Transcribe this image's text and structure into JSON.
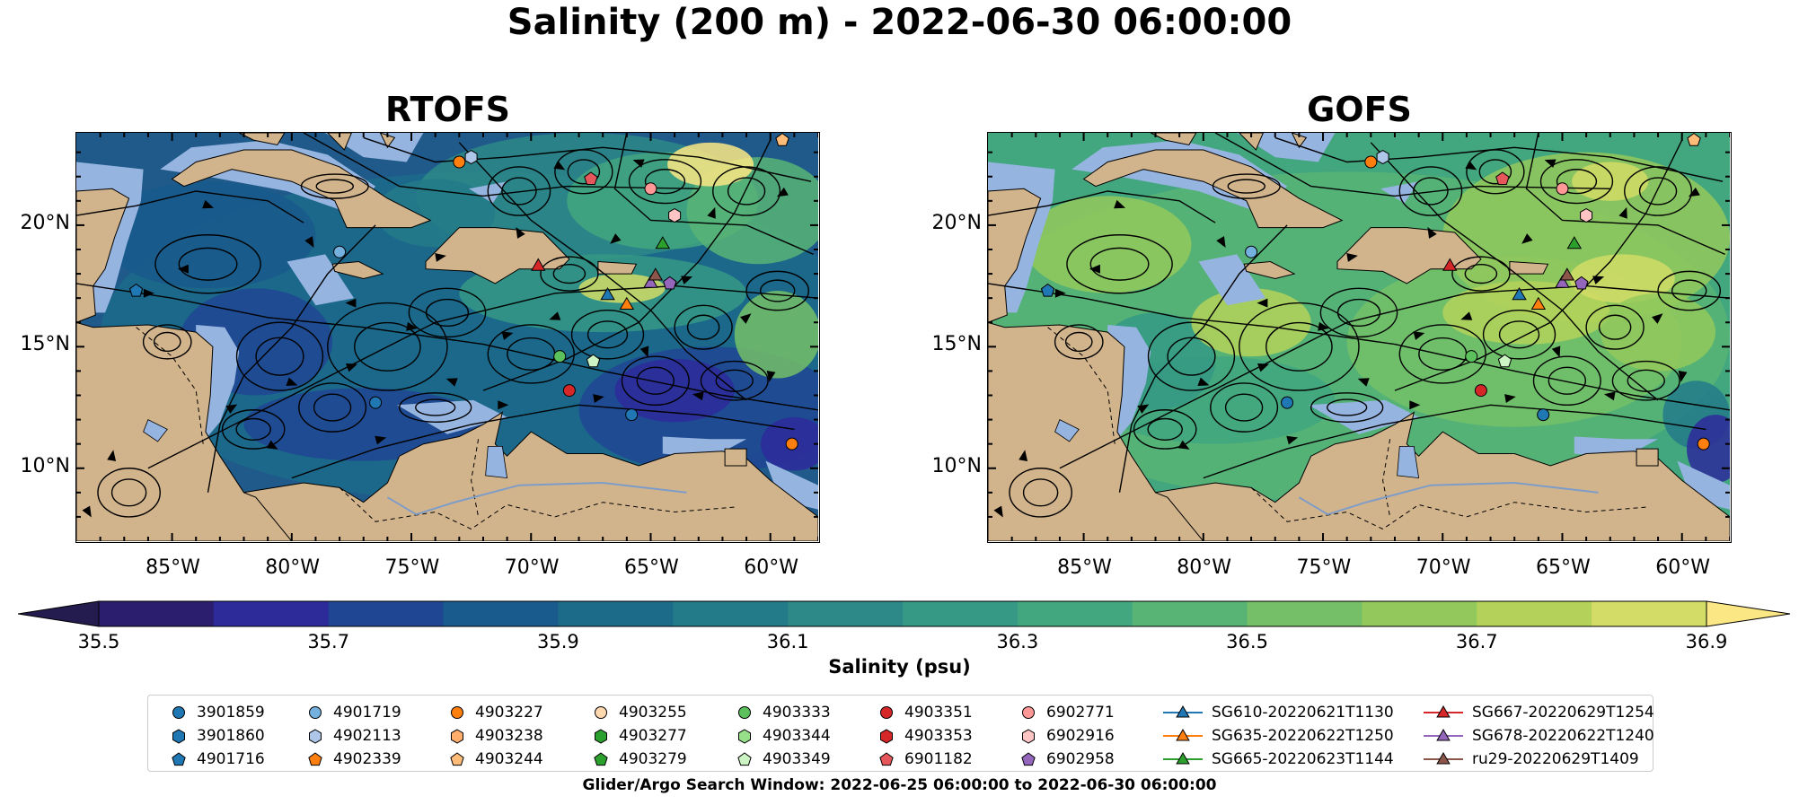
{
  "title": "Salinity (200 m) - 2022-06-30 06:00:00",
  "panels": [
    {
      "title": "RTOFS"
    },
    {
      "title": "GOFS"
    }
  ],
  "map_data": {
    "type": "map",
    "lon_range": [
      -89,
      -58
    ],
    "lat_range": [
      7,
      23.8
    ],
    "lon_ticks": [
      "85°W",
      "80°W",
      "75°W",
      "70°W",
      "65°W",
      "60°W"
    ],
    "lat_ticks": [
      "20°N",
      "15°N",
      "10°N"
    ],
    "land_color": "#d2b48c",
    "shelf_color": "#96b4e0"
  },
  "colorbar": {
    "label": "Salinity (psu)",
    "ticks": [
      "35.5",
      "35.7",
      "35.9",
      "36.1",
      "36.3",
      "36.5",
      "36.7",
      "36.9"
    ],
    "colors": [
      "#2b1e6e",
      "#2d2a9a",
      "#1f4693",
      "#195b8c",
      "#1b6b89",
      "#237a88",
      "#2d8987",
      "#359985",
      "#42a67f",
      "#58b475",
      "#74bf67",
      "#93c95c",
      "#b4d25a",
      "#d2dc66"
    ],
    "under_color": "#241c4f",
    "over_color": "#fbe784"
  },
  "legend": {
    "columns": [
      [
        {
          "label": "3901859",
          "marker": "circle",
          "color": "#1f77b4"
        },
        {
          "label": "3901860",
          "marker": "hexagon",
          "color": "#1f77b4"
        },
        {
          "label": "4901716",
          "marker": "pentagon",
          "color": "#1f77b4"
        }
      ],
      [
        {
          "label": "4901719",
          "marker": "circle",
          "color": "#74b1df"
        },
        {
          "label": "4902113",
          "marker": "hexagon",
          "color": "#aec7e8"
        },
        {
          "label": "4902339",
          "marker": "pentagon",
          "color": "#ff7f0e"
        }
      ],
      [
        {
          "label": "4903227",
          "marker": "circle",
          "color": "#ff7f0e"
        },
        {
          "label": "4903238",
          "marker": "hexagon",
          "color": "#ffae6b"
        },
        {
          "label": "4903244",
          "marker": "pentagon",
          "color": "#ffbb78"
        }
      ],
      [
        {
          "label": "4903255",
          "marker": "circle",
          "color": "#ffd8b0"
        },
        {
          "label": "4903277",
          "marker": "hexagon",
          "color": "#2ca02c"
        },
        {
          "label": "4903279",
          "marker": "pentagon",
          "color": "#2ca02c"
        }
      ],
      [
        {
          "label": "4903333",
          "marker": "circle",
          "color": "#5cc15c"
        },
        {
          "label": "4903344",
          "marker": "hexagon",
          "color": "#98df8a"
        },
        {
          "label": "4903349",
          "marker": "pentagon",
          "color": "#cdf5c4"
        }
      ],
      [
        {
          "label": "4903351",
          "marker": "circle",
          "color": "#d62728"
        },
        {
          "label": "4903353",
          "marker": "hexagon",
          "color": "#d62728"
        },
        {
          "label": "6901182",
          "marker": "pentagon",
          "color": "#e5575a"
        }
      ],
      [
        {
          "label": "6902771",
          "marker": "circle",
          "color": "#ff9896"
        },
        {
          "label": "6902916",
          "marker": "hexagon",
          "color": "#ffc4c4"
        },
        {
          "label": "6902958",
          "marker": "pentagon",
          "color": "#9467bd"
        }
      ],
      [
        {
          "label": "SG610-20220621T1130",
          "marker": "triangle-line",
          "color": "#1f77b4"
        },
        {
          "label": "SG635-20220622T1250",
          "marker": "triangle-line",
          "color": "#ff7f0e"
        },
        {
          "label": "SG665-20220623T1144",
          "marker": "triangle-line",
          "color": "#2ca02c"
        }
      ],
      [
        {
          "label": "SG667-20220629T1254",
          "marker": "triangle-line",
          "color": "#d62728"
        },
        {
          "label": "SG678-20220622T1240",
          "marker": "triangle-line",
          "color": "#9467bd"
        },
        {
          "label": "ru29-20220629T1409",
          "marker": "triangle-line",
          "color": "#8c564b"
        }
      ]
    ]
  },
  "footnote": "Glider/Argo Search Window: 2022-06-25 06:00:00 to 2022-06-30 06:00:00"
}
